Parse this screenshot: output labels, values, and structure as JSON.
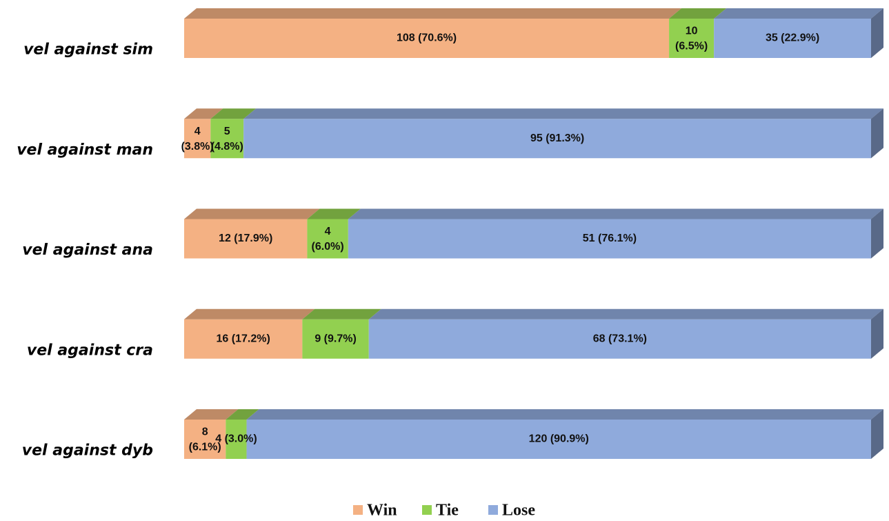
{
  "chart_data": {
    "type": "stacked_bar_100",
    "categories": [
      "vel against sim",
      "vel against man",
      "vel against ana",
      "vel against cra",
      "vel against dyb"
    ],
    "series": [
      {
        "name": "Win",
        "color": "#f4b183",
        "values": [
          108,
          4,
          12,
          16,
          8
        ],
        "value_labels": [
          "108 (70.6%)",
          "4 (3.8%)",
          "12 (17.9%)",
          "16 (17.2%)",
          "8 (6.1%)"
        ]
      },
      {
        "name": "Tie",
        "color": "#92d050",
        "values": [
          10,
          5,
          4,
          9,
          4
        ],
        "value_labels": [
          "10 (6.5%)",
          "5 (4.8%)",
          "4 (6.0%)",
          "9 (9.7%)",
          "4 (3.0%)"
        ]
      },
      {
        "name": "Lose",
        "color": "#8faadc",
        "values": [
          35,
          95,
          51,
          68,
          120
        ],
        "value_labels": [
          "35 (22.9%)",
          "95 (91.3%)",
          "51 (76.1%)",
          "68 (73.1%)",
          "120 (90.9%)"
        ]
      }
    ],
    "legend": "bottom"
  }
}
